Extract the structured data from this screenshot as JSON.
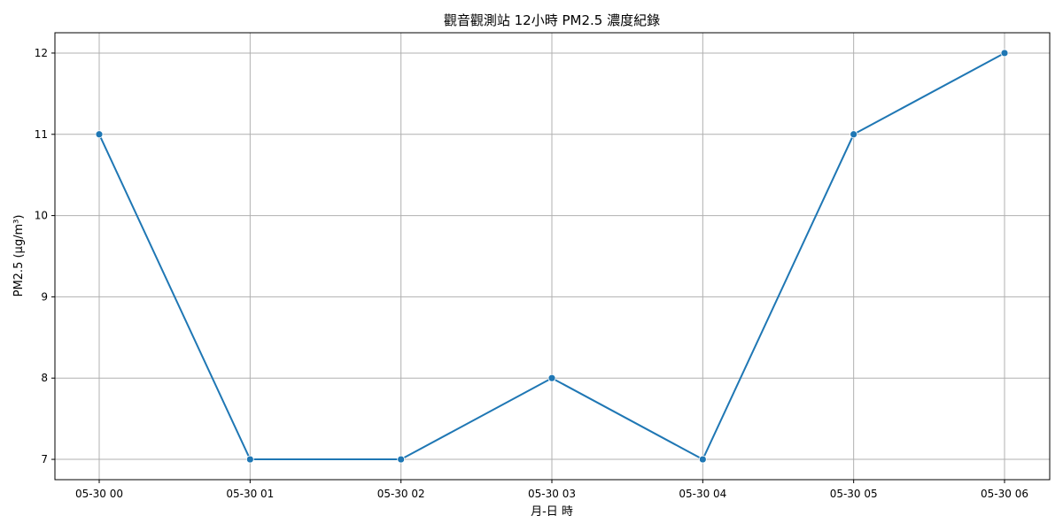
{
  "chart_data": {
    "type": "line",
    "title": "觀音觀測站 12小時 PM2.5 濃度紀錄",
    "xlabel": "月-日 時",
    "ylabel": "PM2.5 (μg/m³)",
    "categories": [
      "05-30 00",
      "05-30 01",
      "05-30 02",
      "05-30 03",
      "05-30 04",
      "05-30 05",
      "05-30 06"
    ],
    "series": [
      {
        "values": [
          11,
          7,
          7,
          8,
          7,
          11,
          12
        ]
      }
    ],
    "yticks": [
      7,
      8,
      9,
      10,
      11,
      12
    ],
    "ylim": [
      6.75,
      12.25
    ],
    "grid": true,
    "colors": {
      "line": "#1f77b4",
      "grid": "#b0b0b0",
      "axis": "#000000"
    }
  }
}
